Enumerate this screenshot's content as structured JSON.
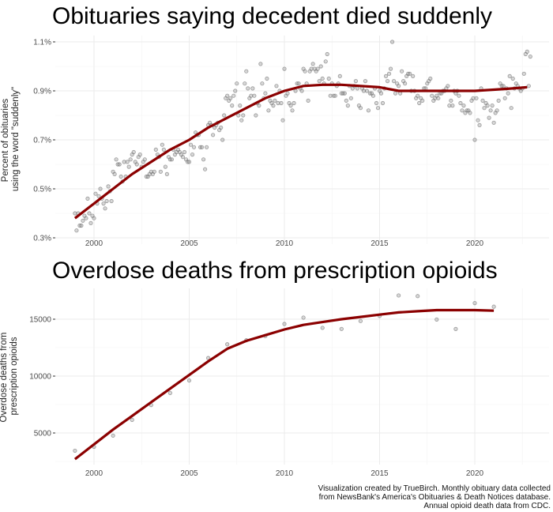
{
  "colors": {
    "smooth_line": "#8b0000",
    "points": "#888888"
  },
  "caption": [
    "Visualization created by TrueBirch. Monthly obituary data collected",
    "from NewsBank's America's Obituaries & Death Notices database.",
    "Annual opioid death data from CDC."
  ],
  "chart_data": [
    {
      "type": "scatter",
      "title": "Obituaries saying decedent died suddenly",
      "xlabel": "",
      "ylabel": "Percent of obituaries\nusing the word \"suddenly\"",
      "ylabel_lines": [
        "Percent of obituaries",
        "using the word \"suddenly\""
      ],
      "xlim": [
        1998.0,
        2023.8
      ],
      "ylim": [
        0.28,
        1.11
      ],
      "x_ticks": [
        2000,
        2005,
        2010,
        2015,
        2020
      ],
      "x_tick_labels": [
        "2000",
        "2005",
        "2010",
        "2015",
        "2020"
      ],
      "y_ticks": [
        0.3,
        0.5,
        0.7,
        0.9,
        1.1
      ],
      "y_tick_labels": [
        "0.3%",
        "0.5%",
        "0.7%",
        "0.9%",
        "1.1%"
      ],
      "grid": true,
      "series": [
        {
          "type": "scatter",
          "x_start": 1999.0,
          "x_step": "monthly",
          "values_by_year": {
            "1999": [
              0.4,
              0.33,
              0.4,
              0.35,
              0.35,
              0.37,
              0.39,
              0.38,
              0.46,
              0.4,
              0.36,
              0.39
            ],
            "2000": [
              0.38,
              0.48,
              0.44,
              0.47,
              0.5,
              0.46,
              0.44,
              0.42,
              0.45,
              0.51,
              0.49,
              0.45
            ],
            "2001": [
              0.57,
              0.56,
              0.62,
              0.6,
              0.6,
              0.55,
              0.53,
              0.61,
              0.55,
              0.61,
              0.59,
              0.62
            ],
            "2002": [
              0.64,
              0.65,
              0.61,
              0.6,
              0.63,
              0.64,
              0.59,
              0.61,
              0.62,
              0.55,
              0.55,
              0.56
            ],
            "2003": [
              0.57,
              0.56,
              0.57,
              0.66,
              0.64,
              0.63,
              0.57,
              0.68,
              0.66,
              0.59,
              0.56,
              0.63
            ],
            "2004": [
              0.62,
              0.62,
              0.66,
              0.64,
              0.65,
              0.66,
              0.65,
              0.64,
              0.63,
              0.65,
              0.62,
              0.61
            ],
            "2005": [
              0.61,
              0.68,
              0.64,
              0.67,
              0.73,
              0.72,
              0.72,
              0.67,
              0.67,
              0.62,
              0.58,
              0.67
            ],
            "2006": [
              0.76,
              0.77,
              0.76,
              0.72,
              0.75,
              0.76,
              0.77,
              0.74,
              0.75,
              0.7,
              0.8,
              0.87
            ],
            "2007": [
              0.88,
              0.86,
              0.87,
              0.84,
              0.88,
              0.9,
              0.93,
              0.8,
              0.84,
              0.78,
              0.8,
              0.93
            ],
            "2008": [
              0.98,
              0.91,
              0.87,
              0.88,
              0.91,
              0.88,
              0.8,
              0.85,
              0.84,
              1.01,
              0.93,
              0.87
            ],
            "2009": [
              0.89,
              0.95,
              0.82,
              0.86,
              0.85,
              0.84,
              0.86,
              0.92,
              0.85,
              0.9,
              0.85,
              0.78
            ],
            "2010": [
              0.99,
              0.88,
              0.89,
              0.85,
              0.84,
              0.82,
              0.85,
              0.9,
              0.93,
              0.93,
              0.91,
              0.9
            ],
            "2011": [
              0.99,
              0.98,
              0.93,
              0.86,
              0.98,
              0.99,
              1.01,
              0.99,
              0.98,
              0.99,
              0.94,
              1.0
            ],
            "2012": [
              0.95,
              0.93,
              1.02,
              1.05,
              0.95,
              0.88,
              0.93,
              0.88,
              0.88,
              0.92,
              0.93,
              0.96
            ],
            "2013": [
              0.89,
              0.89,
              0.89,
              0.86,
              0.84,
              0.92,
              0.87,
              0.91,
              0.92,
              0.94,
              0.91,
              0.84
            ],
            "2014": [
              0.83,
              0.91,
              0.9,
              0.94,
              0.9,
              0.82,
              0.89,
              0.89,
              0.88,
              0.91,
              0.85,
              0.83
            ],
            "2015": [
              0.9,
              0.89,
              0.85,
              0.91,
              0.96,
              0.94,
              0.97,
              0.99,
              1.1,
              0.94,
              0.89,
              0.93
            ],
            "2016": [
              0.92,
              0.89,
              0.98,
              0.94,
              0.93,
              0.96,
              0.97,
              0.97,
              0.9,
              0.96,
              0.9,
              0.87
            ],
            "2017": [
              0.88,
              0.85,
              0.87,
              0.86,
              0.91,
              0.91,
              0.93,
              0.94,
              0.95,
              0.88,
              0.86,
              0.87
            ],
            "2018": [
              0.88,
              0.87,
              0.89,
              0.89,
              0.9,
              0.9,
              0.91,
              0.92,
              0.84,
              0.86,
              0.84,
              0.9
            ],
            "2019": [
              0.89,
              0.9,
              0.88,
              0.85,
              0.82,
              0.84,
              0.81,
              0.82,
              0.82,
              0.81,
              0.86,
              0.87
            ],
            "2020": [
              0.7,
              0.87,
              0.78,
              0.76,
              0.91,
              0.86,
              0.83,
              0.85,
              0.84,
              0.79,
              0.82,
              0.84
            ],
            "2021": [
              0.77,
              0.81,
              0.82,
              0.86,
              0.93,
              0.92,
              0.92,
              0.87,
              0.91,
              0.89,
              0.96,
              0.83
            ],
            "2022": [
              0.95,
              0.91,
              0.93,
              0.92,
              0.91,
              0.9,
              0.91,
              0.97,
              1.05,
              1.06,
              0.92,
              1.04
            ]
          }
        },
        {
          "type": "line",
          "x": [
            1999,
            2000,
            2001,
            2002,
            2003,
            2004,
            2005,
            2006,
            2007,
            2008,
            2009,
            2010,
            2011,
            2012,
            2013,
            2014,
            2015,
            2016,
            2017,
            2018,
            2019,
            2020,
            2021,
            2022,
            2022.75
          ],
          "values": [
            0.38,
            0.44,
            0.5,
            0.56,
            0.61,
            0.66,
            0.7,
            0.75,
            0.79,
            0.83,
            0.87,
            0.9,
            0.92,
            0.925,
            0.925,
            0.92,
            0.915,
            0.9,
            0.9,
            0.9,
            0.9,
            0.9,
            0.905,
            0.91,
            0.915
          ]
        }
      ]
    },
    {
      "type": "scatter",
      "title": "Overdose deaths from prescription opioids",
      "xlabel": "",
      "ylabel": "Overdose deaths from\nprescription opioids",
      "ylabel_lines": [
        "Overdose deaths from",
        "prescription opioids"
      ],
      "xlim": [
        1998.0,
        2023.8
      ],
      "ylim": [
        2000,
        17600
      ],
      "x_ticks": [
        2000,
        2005,
        2010,
        2015,
        2020
      ],
      "x_tick_labels": [
        "2000",
        "2005",
        "2010",
        "2015",
        "2020"
      ],
      "y_ticks": [
        5000,
        10000,
        15000
      ],
      "y_tick_labels": [
        "5000",
        "10000",
        "15000"
      ],
      "grid": true,
      "series": [
        {
          "type": "scatter",
          "x": [
            1999,
            2000,
            2001,
            2002,
            2003,
            2004,
            2005,
            2006,
            2007,
            2008,
            2009,
            2010,
            2011,
            2012,
            2013,
            2014,
            2015,
            2016,
            2017,
            2018,
            2019,
            2020,
            2021
          ],
          "values": [
            3442,
            3785,
            4770,
            6155,
            7456,
            8517,
            9612,
            11589,
            12796,
            13149,
            13523,
            14583,
            15140,
            14240,
            14145,
            14838,
            15281,
            17087,
            17029,
            14975,
            14139,
            16416,
            16100
          ]
        },
        {
          "type": "line",
          "x": [
            1999,
            2000,
            2001,
            2002,
            2003,
            2004,
            2005,
            2006,
            2007,
            2008,
            2009,
            2010,
            2011,
            2012,
            2013,
            2014,
            2015,
            2016,
            2017,
            2018,
            2019,
            2020,
            2021
          ],
          "values": [
            2700,
            4000,
            5300,
            6500,
            7700,
            8900,
            10100,
            11300,
            12400,
            13100,
            13600,
            14100,
            14500,
            14750,
            15000,
            15200,
            15400,
            15600,
            15700,
            15800,
            15800,
            15800,
            15750
          ]
        }
      ]
    }
  ]
}
